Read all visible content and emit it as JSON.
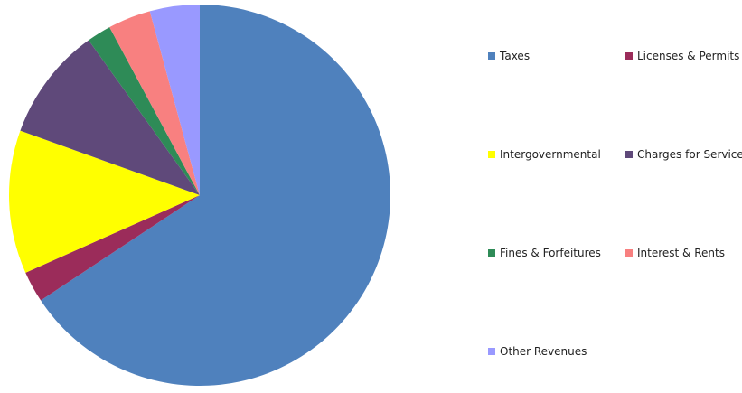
{
  "chart_data": {
    "type": "pie",
    "categories": [
      "Taxes",
      "Licenses & Permits",
      "Intergovernmental",
      "Charges for Services",
      "Fines & Forfeitures",
      "Interest & Rents",
      "Other Revenues"
    ],
    "values": [
      0.67,
      0.027,
      0.124,
      0.098,
      0.021,
      0.037,
      0.043
    ],
    "colors": [
      "#4F81BD",
      "#9B2C5A",
      "#FFFF00",
      "#5F497A",
      "#2E8B57",
      "#F88080",
      "#9999FF"
    ],
    "legend": "right",
    "start_angle_deg": 0,
    "direction": "clockwise"
  }
}
